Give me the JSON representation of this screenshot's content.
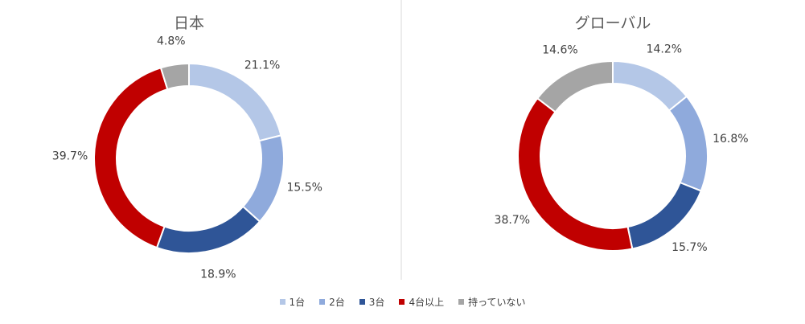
{
  "chart_data": [
    {
      "type": "donut",
      "title": "日本",
      "categories": [
        "1台",
        "2台",
        "3台",
        "4台以上",
        "持っていない"
      ],
      "values": [
        21.1,
        15.5,
        18.9,
        39.7,
        4.8
      ],
      "labels": [
        "21.1%",
        "15.5%",
        "18.9%",
        "39.7%",
        "4.8%"
      ]
    },
    {
      "type": "donut",
      "title": "グローバル",
      "categories": [
        "1台",
        "2台",
        "3台",
        "4台以上",
        "持っていない"
      ],
      "values": [
        14.2,
        16.8,
        15.7,
        38.7,
        14.6
      ],
      "labels": [
        "14.2%",
        "16.8%",
        "15.7%",
        "38.7%",
        "14.6%"
      ]
    }
  ],
  "colors": [
    "#b4c7e7",
    "#8faadc",
    "#2f5597",
    "#c00000",
    "#a5a5a5"
  ],
  "legend": {
    "placement": "bottom",
    "items": [
      "1台",
      "2台",
      "3台",
      "4台以上",
      "持っていない"
    ]
  }
}
